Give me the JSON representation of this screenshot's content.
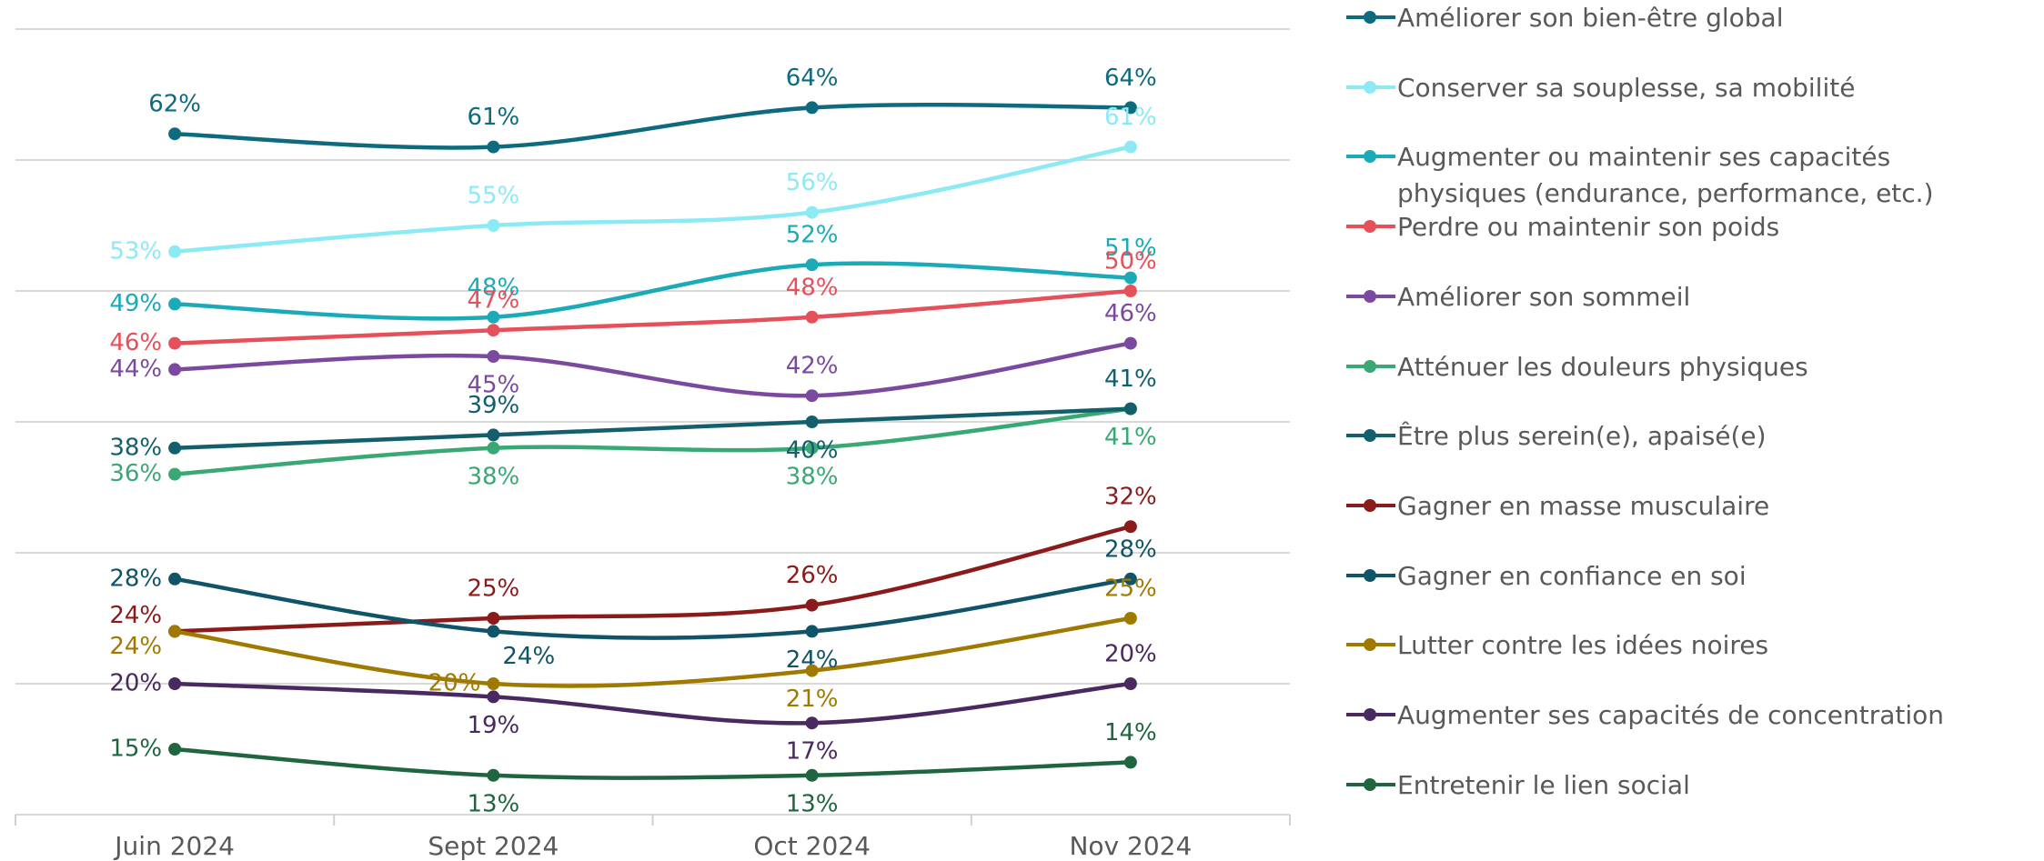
{
  "chart_data": {
    "type": "line",
    "categories": [
      "Juin 2024",
      "Sept 2024",
      "Oct 2024",
      "Nov 2024"
    ],
    "ylim": [
      10,
      70
    ],
    "yticks": [
      10,
      20,
      30,
      40,
      50,
      60,
      70
    ],
    "grid": true,
    "series": [
      {
        "name": "Améliorer son bien-être global",
        "color": "#0e6a7e",
        "values": [
          62,
          61,
          64,
          64
        ],
        "value_labels": [
          "62%",
          "61%",
          "64%",
          "64%"
        ]
      },
      {
        "name": "Conserver sa souplesse, sa mobilité",
        "color": "#8ceaf5",
        "values": [
          53,
          55,
          56,
          61
        ],
        "value_labels": [
          "53%",
          "55%",
          "56%",
          "61%"
        ]
      },
      {
        "name": "Augmenter ou maintenir ses capacités physiques (endurance, performance, etc.)",
        "color": "#1aaab8",
        "values": [
          49,
          48,
          52,
          51
        ],
        "value_labels": [
          "49%",
          "48%",
          "52%",
          "51%"
        ]
      },
      {
        "name": "Perdre ou maintenir son poids",
        "color": "#e5505a",
        "values": [
          46,
          47,
          48,
          50
        ],
        "value_labels": [
          "46%",
          "47%",
          "48%",
          "50%"
        ]
      },
      {
        "name": "Améliorer son sommeil",
        "color": "#7b4aa0",
        "values": [
          44,
          45,
          42,
          46
        ],
        "value_labels": [
          "44%",
          "45%",
          "42%",
          "46%"
        ]
      },
      {
        "name": "Atténuer les douleurs physiques",
        "color": "#3aa874",
        "values": [
          36,
          38,
          38,
          41
        ],
        "value_labels": [
          "36%",
          "38%",
          "38%",
          "41%"
        ]
      },
      {
        "name": "Être plus serein(e), apaisé(e)",
        "color": "#13606c",
        "values": [
          38,
          39,
          40,
          41
        ],
        "value_labels": [
          "38%",
          "39%",
          "40%",
          "41%"
        ]
      },
      {
        "name": "Gagner en masse musculaire",
        "color": "#8b1a1a",
        "values": [
          24,
          25,
          26,
          32
        ],
        "value_labels": [
          "24%",
          "25%",
          "26%",
          "32%"
        ]
      },
      {
        "name": "Gagner en confiance en soi",
        "color": "#0f5468",
        "values": [
          28,
          24,
          24,
          28
        ],
        "value_labels": [
          "28%",
          "24%",
          "24%",
          "28%"
        ]
      },
      {
        "name": "Lutter contre les idées noires",
        "color": "#a07a00",
        "values": [
          24,
          20,
          21,
          25
        ],
        "value_labels": [
          "24%",
          "20%",
          "21%",
          "25%"
        ]
      },
      {
        "name": "Augmenter ses capacités de concentration",
        "color": "#4a2860",
        "values": [
          20,
          19,
          17,
          20
        ],
        "value_labels": [
          "20%",
          "19%",
          "17%",
          "20%"
        ]
      },
      {
        "name": "Entretenir le lien social",
        "color": "#1f6640",
        "values": [
          15,
          13,
          13,
          14
        ],
        "value_labels": [
          "15%",
          "13%",
          "13%",
          "14%"
        ]
      }
    ]
  }
}
